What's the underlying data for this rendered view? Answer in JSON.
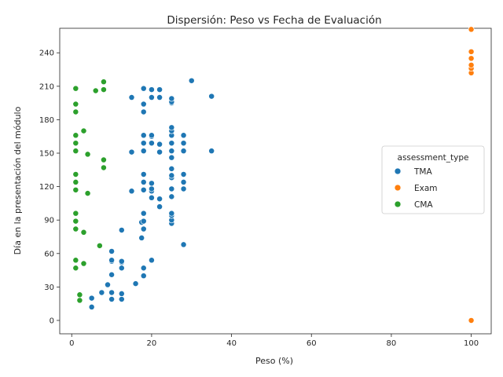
{
  "chart_data": {
    "type": "scatter",
    "title": "Dispersión: Peso vs Fecha de Evaluación",
    "xlabel": "Peso (%)",
    "ylabel": "Día en la presentación del módulo",
    "xlim": [
      -3,
      105
    ],
    "ylim": [
      -12,
      262
    ],
    "xticks": [
      0,
      20,
      40,
      60,
      80,
      100
    ],
    "yticks": [
      0,
      30,
      60,
      90,
      120,
      150,
      180,
      210,
      240
    ],
    "grid": false,
    "legend": {
      "title": "assessment_type",
      "placement": "center-right"
    },
    "series": [
      {
        "name": "TMA",
        "color": "#1f77b4",
        "points": [
          [
            5,
            12
          ],
          [
            5,
            20
          ],
          [
            7.5,
            25
          ],
          [
            9,
            32
          ],
          [
            10,
            19
          ],
          [
            10,
            25
          ],
          [
            10,
            41
          ],
          [
            10,
            53
          ],
          [
            10,
            54
          ],
          [
            10,
            62
          ],
          [
            12.5,
            19
          ],
          [
            12.5,
            24
          ],
          [
            12.5,
            47
          ],
          [
            12.5,
            52
          ],
          [
            12.5,
            53
          ],
          [
            12.5,
            81
          ],
          [
            15,
            116
          ],
          [
            15,
            151
          ],
          [
            15,
            200
          ],
          [
            16,
            33
          ],
          [
            17.5,
            74
          ],
          [
            17.5,
            88
          ],
          [
            18,
            40
          ],
          [
            18,
            47
          ],
          [
            18,
            82
          ],
          [
            18,
            89
          ],
          [
            18,
            96
          ],
          [
            18,
            117
          ],
          [
            18,
            124
          ],
          [
            18,
            131
          ],
          [
            18,
            152
          ],
          [
            18,
            159
          ],
          [
            18,
            166
          ],
          [
            18,
            187
          ],
          [
            18,
            194
          ],
          [
            18,
            208
          ],
          [
            20,
            54
          ],
          [
            20,
            110
          ],
          [
            20,
            116
          ],
          [
            20,
            118
          ],
          [
            20,
            123
          ],
          [
            20,
            159
          ],
          [
            20,
            165
          ],
          [
            20,
            166
          ],
          [
            20,
            200
          ],
          [
            20,
            207
          ],
          [
            22,
            102
          ],
          [
            22,
            109
          ],
          [
            22,
            151
          ],
          [
            22,
            158
          ],
          [
            22,
            200
          ],
          [
            22,
            207
          ],
          [
            25,
            87
          ],
          [
            25,
            90
          ],
          [
            25,
            94
          ],
          [
            25,
            96
          ],
          [
            25,
            111
          ],
          [
            25,
            118
          ],
          [
            25,
            128
          ],
          [
            25,
            130
          ],
          [
            25,
            136
          ],
          [
            25,
            146
          ],
          [
            25,
            152
          ],
          [
            25,
            159
          ],
          [
            25,
            166
          ],
          [
            25,
            170
          ],
          [
            25,
            173
          ],
          [
            25,
            195
          ],
          [
            25,
            196
          ],
          [
            25,
            199
          ],
          [
            28,
            68
          ],
          [
            28,
            118
          ],
          [
            28,
            124
          ],
          [
            28,
            131
          ],
          [
            28,
            152
          ],
          [
            28,
            159
          ],
          [
            28,
            166
          ],
          [
            30,
            215
          ],
          [
            35,
            152
          ],
          [
            35,
            201
          ]
        ]
      },
      {
        "name": "Exam",
        "color": "#ff7f0e",
        "points": [
          [
            100,
            0
          ],
          [
            100,
            222
          ],
          [
            100,
            226
          ],
          [
            100,
            229
          ],
          [
            100,
            235
          ],
          [
            100,
            241
          ],
          [
            100,
            261
          ]
        ]
      },
      {
        "name": "CMA",
        "color": "#2ca02c",
        "points": [
          [
            1,
            47
          ],
          [
            1,
            54
          ],
          [
            1,
            82
          ],
          [
            1,
            89
          ],
          [
            1,
            96
          ],
          [
            1,
            117
          ],
          [
            1,
            124
          ],
          [
            1,
            131
          ],
          [
            1,
            152
          ],
          [
            1,
            159
          ],
          [
            1,
            166
          ],
          [
            1,
            187
          ],
          [
            1,
            194
          ],
          [
            1,
            208
          ],
          [
            2,
            18
          ],
          [
            2,
            23
          ],
          [
            3,
            51
          ],
          [
            3,
            79
          ],
          [
            3,
            170
          ],
          [
            4,
            114
          ],
          [
            4,
            149
          ],
          [
            6,
            206
          ],
          [
            7,
            67
          ],
          [
            8,
            137
          ],
          [
            8,
            144
          ],
          [
            8,
            207
          ],
          [
            8,
            214
          ]
        ]
      }
    ]
  }
}
